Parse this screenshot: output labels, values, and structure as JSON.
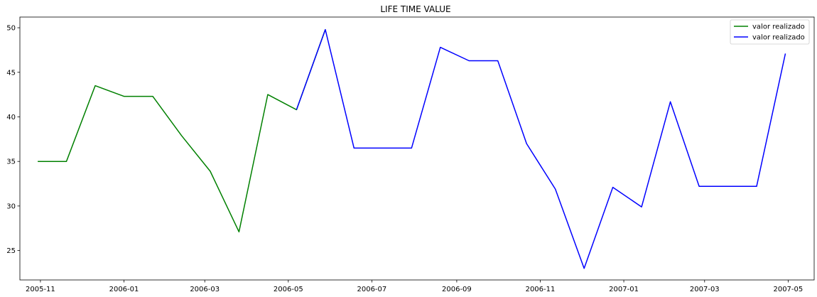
{
  "chart_data": {
    "type": "line",
    "title": "LIFE TIME VALUE",
    "xlabel": "",
    "ylabel": "",
    "x_ticks": [
      "2005-11",
      "2006-01",
      "2006-03",
      "2006-05",
      "2006-07",
      "2006-09",
      "2006-11",
      "2007-01",
      "2007-03",
      "2007-05"
    ],
    "y_ticks": [
      25,
      30,
      35,
      40,
      45,
      50
    ],
    "xlim": [
      "2005-10-17",
      "2007-05-20"
    ],
    "ylim": [
      21.7,
      51.2
    ],
    "grid": false,
    "legend_position": "top-right",
    "series": [
      {
        "name": "valor realizado",
        "color": "#008000",
        "points": [
          {
            "x": "2005-10-30",
            "y": 35.0
          },
          {
            "x": "2005-11-20",
            "y": 35.0
          },
          {
            "x": "2005-12-11",
            "y": 43.5
          },
          {
            "x": "2006-01-01",
            "y": 42.3
          },
          {
            "x": "2006-01-22",
            "y": 42.3
          },
          {
            "x": "2006-02-12",
            "y": 37.9
          },
          {
            "x": "2006-03-05",
            "y": 33.9
          },
          {
            "x": "2006-03-26",
            "y": 27.1
          },
          {
            "x": "2006-04-16",
            "y": 42.5
          },
          {
            "x": "2006-05-07",
            "y": 40.8
          },
          {
            "x": "2006-05-28",
            "y": 49.8
          }
        ]
      },
      {
        "name": "valor realizado",
        "color": "#0000ff",
        "points": [
          {
            "x": "2006-05-07",
            "y": 40.8
          },
          {
            "x": "2006-05-28",
            "y": 49.8
          },
          {
            "x": "2006-06-18",
            "y": 36.5
          },
          {
            "x": "2006-07-09",
            "y": 36.5
          },
          {
            "x": "2006-07-30",
            "y": 36.5
          },
          {
            "x": "2006-08-20",
            "y": 47.8
          },
          {
            "x": "2006-09-10",
            "y": 46.3
          },
          {
            "x": "2006-10-01",
            "y": 46.3
          },
          {
            "x": "2006-10-22",
            "y": 37.0
          },
          {
            "x": "2006-11-12",
            "y": 31.9
          },
          {
            "x": "2006-12-03",
            "y": 23.0
          },
          {
            "x": "2006-12-24",
            "y": 32.1
          },
          {
            "x": "2007-01-14",
            "y": 29.9
          },
          {
            "x": "2007-02-04",
            "y": 41.7
          },
          {
            "x": "2007-02-25",
            "y": 32.2
          },
          {
            "x": "2007-03-18",
            "y": 32.2
          },
          {
            "x": "2007-04-08",
            "y": 32.2
          },
          {
            "x": "2007-04-29",
            "y": 47.1
          }
        ]
      }
    ]
  }
}
